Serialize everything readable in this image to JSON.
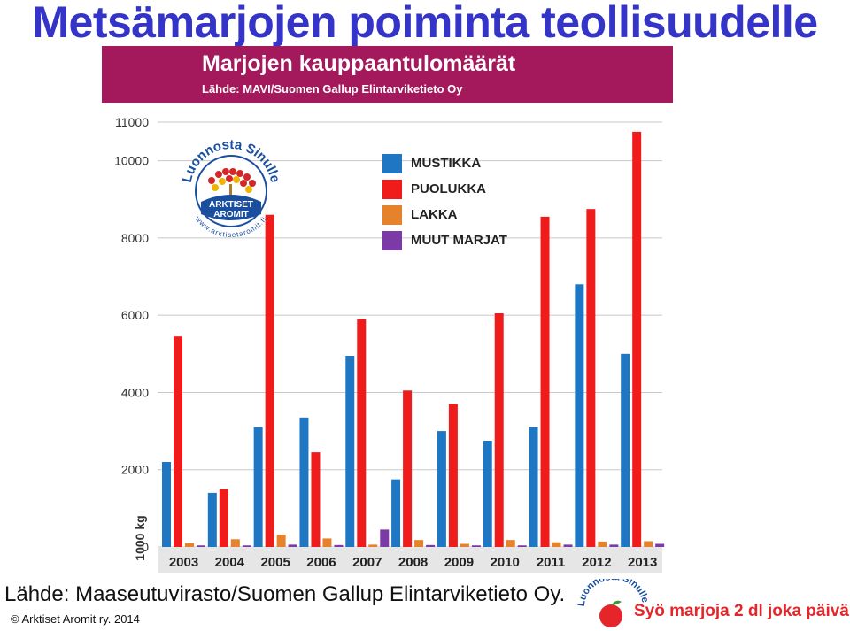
{
  "slide": {
    "title": "Metsämarjojen poiminta teollisuudelle",
    "source_line": "Lähde: Maaseutuvirasto/Suomen Gallup Elintarviketieto Oy.",
    "copyright": "© Arktiset Aromit ry. 2014",
    "slogan": "Syö marjoja 2 dl joka päivä",
    "footer_logo_text": "Luonnosta Sinulle"
  },
  "logo": {
    "arc_text": "Luonnosta Sinulle",
    "center_text_line1": "ARKTISET",
    "center_text_line2": "AROMIT",
    "url_text": "www.arktisetaromit.fi"
  },
  "chart_data": {
    "type": "bar",
    "title": "Marjojen kauppaantulomäärät",
    "subtitle": "Lähde: MAVI/Suomen Gallup Elintarviketieto Oy",
    "ylabel": "1000 kg",
    "xlabel": "",
    "ylim": [
      0,
      11000
    ],
    "yticks": [
      0,
      2000,
      4000,
      6000,
      8000,
      10000,
      11000
    ],
    "grid": true,
    "legend_position": "top-right",
    "categories": [
      "2003",
      "2004",
      "2005",
      "2006",
      "2007",
      "2008",
      "2009",
      "2010",
      "2011",
      "2012",
      "2013"
    ],
    "series": [
      {
        "name": "MUSTIKKA",
        "color": "#1f77c4",
        "values": [
          2200,
          1400,
          3100,
          3350,
          4950,
          1750,
          3000,
          2750,
          3100,
          6800,
          5000
        ]
      },
      {
        "name": "PUOLUKKA",
        "color": "#f01c1c",
        "values": [
          5450,
          1500,
          8600,
          2450,
          5900,
          4050,
          3700,
          6050,
          8550,
          8750,
          10750
        ]
      },
      {
        "name": "LAKKA",
        "color": "#e5822b",
        "values": [
          100,
          200,
          320,
          220,
          60,
          180,
          80,
          180,
          120,
          140,
          150
        ]
      },
      {
        "name": "MUUT MARJAT",
        "color": "#7b3aa6",
        "values": [
          40,
          40,
          60,
          50,
          450,
          50,
          40,
          40,
          60,
          60,
          80
        ]
      }
    ]
  }
}
